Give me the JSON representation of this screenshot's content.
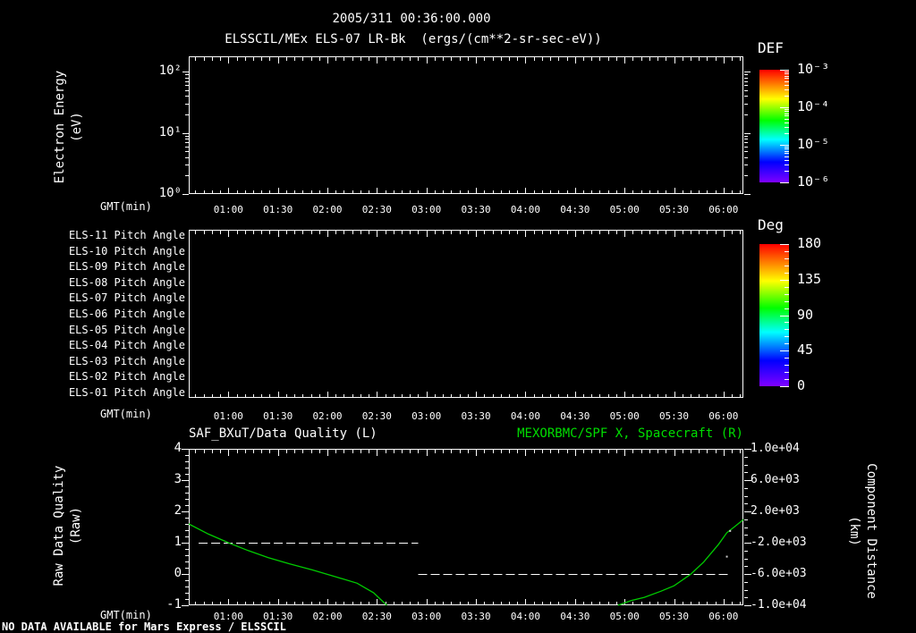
{
  "colors": {
    "background": "#000000",
    "text": "#ffffff",
    "green_text": "#00dd00",
    "green_curve": "#00cc00",
    "quality_line": "#ffffff"
  },
  "header": {
    "date_title": "2005/311 00:36:00.000",
    "plot_title": "ELSSCIL/MEx ELS-07 LR-Bk  (ergs/(cm**2-sr-sec-eV))"
  },
  "footer": {
    "notice": "NO DATA AVAILABLE for Mars Express / ELSSCIL"
  },
  "time_axis": {
    "label": "GMT(min)",
    "start_min": 36,
    "end_min": 372,
    "minor_step_min": 5,
    "major_tick_minutes": [
      60,
      90,
      120,
      150,
      180,
      210,
      240,
      270,
      300,
      330,
      360
    ],
    "tick_labels": [
      "01:00",
      "01:30",
      "02:00",
      "02:30",
      "03:00",
      "03:30",
      "04:00",
      "04:30",
      "05:00",
      "05:30",
      "06:00"
    ]
  },
  "energy_panel": {
    "ylabel_lines": [
      "Electron Energy",
      "(eV)"
    ],
    "ytick_labels": [
      "10²",
      "10¹",
      "10⁰"
    ],
    "colorbar": {
      "title": "DEF",
      "tick_labels": [
        "10⁻³",
        "10⁻⁴",
        "10⁻⁵",
        "10⁻⁶"
      ]
    }
  },
  "pitch_panel": {
    "row_labels": [
      "ELS-11 Pitch Angle",
      "ELS-10 Pitch Angle",
      "ELS-09 Pitch Angle",
      "ELS-08 Pitch Angle",
      "ELS-07 Pitch Angle",
      "ELS-06 Pitch Angle",
      "ELS-05 Pitch Angle",
      "ELS-04 Pitch Angle",
      "ELS-03 Pitch Angle",
      "ELS-02 Pitch Angle",
      "ELS-01 Pitch Angle"
    ],
    "colorbar": {
      "title": "Deg",
      "tick_labels": [
        "180",
        "135",
        "90",
        "45",
        "0"
      ]
    }
  },
  "quality_panel": {
    "left_title": "SAF_BXuT/Data Quality (L)",
    "right_title": "MEXORBMC/SPF X, Spacecraft (R)",
    "ylabel_lines": [
      "Raw Data Quality",
      "(Raw)"
    ],
    "ytick_labels": [
      "4",
      "3",
      "2",
      "1",
      "0",
      "-1"
    ],
    "right_ylabel_lines": [
      "Component Distance",
      "(km)"
    ],
    "right_ytick_labels": [
      "1.0e+04",
      "6.0e+03",
      "2.0e+03",
      "-2.0e+03",
      "-6.0e+03",
      "-1.0e+04"
    ]
  },
  "chart_data": [
    {
      "type": "heatmap",
      "title": "ELSSCIL/MEx ELS-07 LR-Bk (ergs/(cm**2-sr-sec-eV))",
      "x_axis": {
        "label": "GMT(min)",
        "start": "00:36",
        "end": "06:12",
        "tick_labels": [
          "01:00",
          "01:30",
          "02:00",
          "02:30",
          "03:00",
          "03:30",
          "04:00",
          "04:30",
          "05:00",
          "05:30",
          "06:00"
        ]
      },
      "y_axis": {
        "label": "Electron Energy (eV)",
        "scale": "log",
        "ticks": [
          100,
          10,
          1
        ],
        "range": [
          1,
          200
        ]
      },
      "colorbar": {
        "label": "DEF",
        "scale": "log",
        "ticks": [
          0.001,
          0.0001,
          1e-05,
          1e-06
        ]
      },
      "values": [],
      "data_present": false
    },
    {
      "type": "heatmap",
      "rows": [
        "ELS-11 Pitch Angle",
        "ELS-10 Pitch Angle",
        "ELS-09 Pitch Angle",
        "ELS-08 Pitch Angle",
        "ELS-07 Pitch Angle",
        "ELS-06 Pitch Angle",
        "ELS-05 Pitch Angle",
        "ELS-04 Pitch Angle",
        "ELS-03 Pitch Angle",
        "ELS-02 Pitch Angle",
        "ELS-01 Pitch Angle"
      ],
      "x_axis": {
        "label": "GMT(min)",
        "start": "00:36",
        "end": "06:12"
      },
      "colorbar": {
        "label": "Deg",
        "ticks": [
          180,
          135,
          90,
          45,
          0
        ],
        "range": [
          0,
          180
        ]
      },
      "values": [],
      "data_present": false
    },
    {
      "type": "line",
      "x_axis": {
        "label": "GMT(min)",
        "start_min": 36,
        "end_min": 372,
        "tick_labels": [
          "01:00",
          "01:30",
          "02:00",
          "02:30",
          "03:00",
          "03:30",
          "04:00",
          "04:30",
          "05:00",
          "05:30",
          "06:00"
        ]
      },
      "left_axis": {
        "label": "Raw Data Quality (Raw)",
        "range": [
          -1,
          4
        ],
        "ticks": [
          4,
          3,
          2,
          1,
          0,
          -1
        ]
      },
      "right_axis": {
        "label": "Component Distance (km)",
        "range": [
          -10000,
          10000
        ],
        "ticks": [
          10000,
          6000,
          2000,
          -2000,
          -6000,
          -10000
        ]
      },
      "series": [
        {
          "name": "SAF_BXuT/Data Quality (L)",
          "axis": "left",
          "color": "#ffffff",
          "style": "dashed",
          "segments": [
            {
              "start_min": 42,
              "end_min": 175,
              "value": 1
            },
            {
              "start_min": 175,
              "end_min": 364,
              "value": 0
            }
          ]
        },
        {
          "name": "MEXORBMC/SPF X, Spacecraft (R)",
          "axis": "right",
          "color": "#00cc00",
          "style": "solid",
          "visible_segments_min_km": [
            [
              [
                36,
                400
              ],
              [
                48,
                -900
              ],
              [
                61,
                -2090
              ],
              [
                72,
                -3000
              ],
              [
                84,
                -3900
              ],
              [
                97,
                -4700
              ],
              [
                111,
                -5480
              ],
              [
                125,
                -6350
              ],
              [
                138,
                -7175
              ],
              [
                148,
                -8400
              ],
              [
                156,
                -10000
              ]
            ],
            [
              [
                296,
                -10000
              ],
              [
                304,
                -9400
              ],
              [
                312,
                -8983
              ],
              [
                322,
                -8200
              ],
              [
                330,
                -7514
              ],
              [
                340,
                -6045
              ],
              [
                348,
                -4463
              ],
              [
                357,
                -2203
              ],
              [
                362,
                -734
              ],
              [
                367,
                100
              ],
              [
                372,
                960
              ]
            ]
          ]
        }
      ],
      "stray_points_min_km": [
        [
          364,
          -500
        ],
        [
          362,
          -3780
        ]
      ]
    }
  ]
}
